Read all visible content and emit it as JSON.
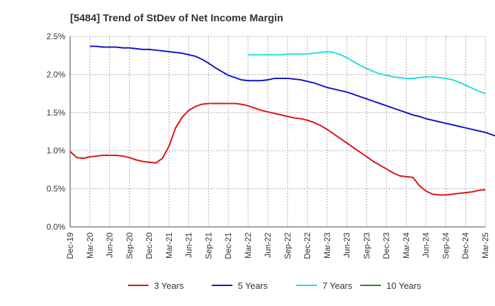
{
  "chart_data": {
    "type": "line",
    "title": "[5484]  Trend of StDev of Net Income Margin",
    "xlabel": "",
    "ylabel": "",
    "x_ticks": [
      "Dec-19",
      "Mar-20",
      "Jun-20",
      "Sep-20",
      "Dec-20",
      "Mar-21",
      "Jun-21",
      "Sep-21",
      "Dec-21",
      "Mar-22",
      "Jun-22",
      "Sep-22",
      "Dec-22",
      "Mar-23",
      "Jun-23",
      "Sep-23",
      "Dec-23",
      "Mar-24",
      "Jun-24",
      "Sep-24",
      "Dec-24",
      "Mar-25"
    ],
    "y_ticks": [
      "0.0%",
      "0.5%",
      "1.0%",
      "1.5%",
      "2.0%",
      "2.5%"
    ],
    "ylim": [
      0,
      2.5
    ],
    "grid": true,
    "legend_position": "bottom",
    "series": [
      {
        "name": "3 Years",
        "color": "#dd1111",
        "x_start": "Dec-19",
        "step": "month",
        "values": [
          0.99,
          0.91,
          0.9,
          0.92,
          0.93,
          0.94,
          0.94,
          0.94,
          0.93,
          0.91,
          0.88,
          0.86,
          0.85,
          0.84,
          0.9,
          1.06,
          1.3,
          1.44,
          1.53,
          1.58,
          1.61,
          1.62,
          1.62,
          1.62,
          1.62,
          1.62,
          1.61,
          1.59,
          1.56,
          1.53,
          1.51,
          1.49,
          1.47,
          1.45,
          1.43,
          1.42,
          1.4,
          1.37,
          1.33,
          1.28,
          1.22,
          1.16,
          1.1,
          1.04,
          0.98,
          0.92,
          0.86,
          0.81,
          0.76,
          0.71,
          0.67,
          0.66,
          0.65,
          0.54,
          0.47,
          0.43,
          0.42,
          0.42,
          0.43,
          0.44,
          0.45,
          0.46,
          0.48,
          0.49
        ]
      },
      {
        "name": "5 Years",
        "color": "#1111cc",
        "x_start": "Dec-19",
        "step": "month",
        "values": [
          null,
          null,
          null,
          null,
          null,
          null,
          null,
          null,
          null,
          null,
          null,
          null,
          null,
          null,
          null,
          null,
          null,
          null,
          null,
          null,
          null,
          null,
          null,
          null,
          null,
          null,
          null,
          null,
          null,
          null,
          null,
          null,
          null,
          null,
          null,
          null,
          null,
          null,
          null,
          null,
          null,
          null,
          null,
          null,
          null,
          null,
          null,
          null,
          null,
          null,
          null,
          null,
          null,
          null,
          null,
          null,
          null,
          null,
          null,
          null,
          null,
          null,
          null,
          null
        ]
      },
      {
        "name": "7 Years",
        "color": "#22dddd",
        "x_start": "Mar-22",
        "step": "month",
        "values": [
          2.26,
          2.26,
          2.26,
          2.26,
          2.26,
          2.26,
          2.27,
          2.27,
          2.27,
          2.27,
          2.28,
          2.29,
          2.3,
          2.29,
          2.26,
          2.22,
          2.17,
          2.12,
          2.08,
          2.04,
          2.01,
          1.99,
          1.97,
          1.96,
          1.95,
          1.95,
          1.96,
          1.97,
          1.97,
          1.96,
          1.95,
          1.93,
          1.9,
          1.86,
          1.82,
          1.78,
          1.75
        ]
      },
      {
        "name": "10 Years",
        "color": "#228822",
        "x_start": "Dec-19",
        "step": "month",
        "values": []
      }
    ]
  }
}
